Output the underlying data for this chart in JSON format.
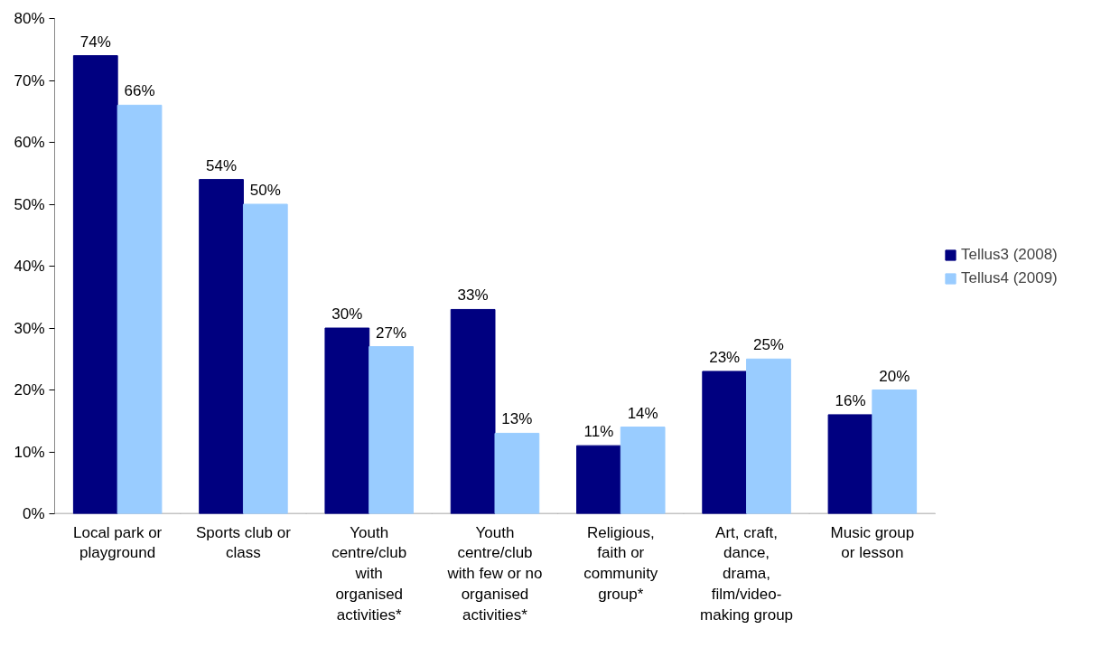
{
  "chart_data": {
    "type": "bar",
    "categories": [
      "Local park or\nplayground",
      "Sports club or\nclass",
      "Youth\ncentre/club\nwith\norganised\nactivities*",
      "Youth\ncentre/club\nwith few or no\norganised\nactivities*",
      "Religious,\nfaith or\ncommunity\ngroup*",
      "Art, craft,\ndance,\ndrama,\nfilm/video-\nmaking group",
      "Music group\nor lesson"
    ],
    "series": [
      {
        "name": "Tellus3 (2008)",
        "color": "#000080",
        "values": [
          74,
          54,
          30,
          33,
          11,
          23,
          16
        ],
        "value_labels": [
          "74%",
          "54%",
          "30%",
          "33%",
          "11%",
          "23%",
          "16%"
        ]
      },
      {
        "name": "Tellus4 (2009)",
        "color": "#99ccff",
        "values": [
          66,
          50,
          27,
          13,
          14,
          25,
          20
        ],
        "value_labels": [
          "66%",
          "50%",
          "27%",
          "13%",
          "14%",
          "25%",
          "20%"
        ]
      }
    ],
    "ylim": [
      0,
      80
    ],
    "yticks": [
      {
        "value": 0,
        "label": "0%"
      },
      {
        "value": 10,
        "label": "10%"
      },
      {
        "value": 20,
        "label": "20%"
      },
      {
        "value": 30,
        "label": "30%"
      },
      {
        "value": 40,
        "label": "40%"
      },
      {
        "value": 50,
        "label": "50%"
      },
      {
        "value": 60,
        "label": "60%"
      },
      {
        "value": 70,
        "label": "70%"
      },
      {
        "value": 80,
        "label": "80%"
      }
    ],
    "grid": false,
    "legend": "right"
  }
}
